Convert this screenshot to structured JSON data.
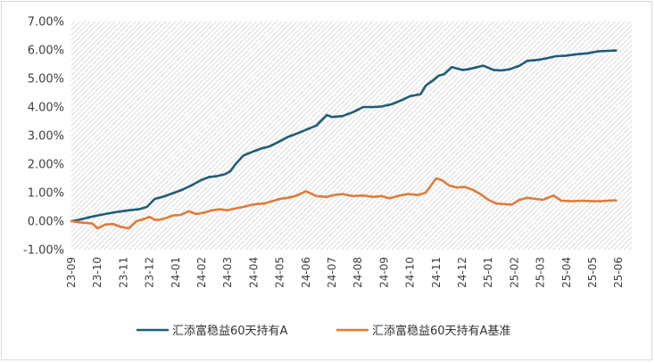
{
  "chart_data": {
    "type": "line",
    "title": "",
    "xlabel": "",
    "ylabel": "",
    "ylim": [
      -1.0,
      7.0
    ],
    "y_ticks": [
      "7.00%",
      "6.00%",
      "5.00%",
      "4.00%",
      "3.00%",
      "2.00%",
      "1.00%",
      "0.00%",
      "-1.00%"
    ],
    "x_ticks": [
      "23-09",
      "23-10",
      "23-11",
      "23-12",
      "24-01",
      "24-02",
      "24-03",
      "24-04",
      "24-05",
      "24-06",
      "24-07",
      "24-08",
      "24-09",
      "24-10",
      "24-11",
      "24-12",
      "25-01",
      "25-02",
      "25-03",
      "25-04",
      "25-05",
      "25-06"
    ],
    "x_range": [
      0,
      20.9
    ],
    "legend_position": "bottom",
    "plot_background": "diagonal hatch",
    "grid": false,
    "series": [
      {
        "name": "汇添富稳益60天持有A",
        "color": "#1f5c78",
        "x": [
          0,
          0.3,
          0.6,
          1.0,
          1.4,
          1.8,
          2.2,
          2.6,
          2.9,
          3.2,
          3.5,
          3.8,
          4.2,
          4.6,
          5.0,
          5.3,
          5.6,
          5.9,
          6.1,
          6.3,
          6.6,
          7.0,
          7.3,
          7.6,
          8.0,
          8.3,
          8.6,
          9.0,
          9.4,
          9.8,
          10.0,
          10.4,
          10.8,
          11.2,
          11.6,
          11.9,
          12.3,
          12.7,
          13.0,
          13.4,
          13.6,
          13.9,
          14.1,
          14.3,
          14.6,
          15.0,
          15.2,
          15.5,
          15.8,
          16.2,
          16.5,
          16.8,
          17.2,
          17.5,
          17.9,
          18.2,
          18.6,
          19.0,
          19.4,
          19.8,
          20.2,
          20.6,
          20.9
        ],
        "values": [
          0.0,
          0.05,
          0.12,
          0.2,
          0.27,
          0.33,
          0.38,
          0.42,
          0.5,
          0.78,
          0.85,
          0.95,
          1.08,
          1.25,
          1.45,
          1.55,
          1.58,
          1.65,
          1.75,
          2.0,
          2.3,
          2.45,
          2.55,
          2.62,
          2.8,
          2.95,
          3.05,
          3.2,
          3.35,
          3.72,
          3.65,
          3.68,
          3.82,
          4.0,
          4.0,
          4.02,
          4.1,
          4.25,
          4.38,
          4.45,
          4.75,
          4.95,
          5.1,
          5.15,
          5.4,
          5.3,
          5.32,
          5.38,
          5.45,
          5.3,
          5.28,
          5.32,
          5.45,
          5.62,
          5.65,
          5.7,
          5.78,
          5.8,
          5.85,
          5.88,
          5.95,
          5.97,
          5.98
        ]
      },
      {
        "name": "汇添富稳益60天持有A基准",
        "color": "#e07b39",
        "x": [
          0,
          0.4,
          0.8,
          1.0,
          1.3,
          1.6,
          1.9,
          2.2,
          2.5,
          2.7,
          3.0,
          3.2,
          3.4,
          3.6,
          3.9,
          4.2,
          4.5,
          4.8,
          5.1,
          5.4,
          5.7,
          6.0,
          6.3,
          6.6,
          6.8,
          7.1,
          7.4,
          7.7,
          8.0,
          8.3,
          8.6,
          9.0,
          9.4,
          9.8,
          10.1,
          10.4,
          10.8,
          11.2,
          11.6,
          11.9,
          12.2,
          12.6,
          12.9,
          13.3,
          13.6,
          14.0,
          14.2,
          14.5,
          14.8,
          15.1,
          15.4,
          15.7,
          16.0,
          16.3,
          16.6,
          16.9,
          17.2,
          17.5,
          17.8,
          18.1,
          18.5,
          18.8,
          19.2,
          19.6,
          20.0,
          20.3,
          20.6,
          20.9
        ],
        "values": [
          0.0,
          -0.05,
          -0.08,
          -0.25,
          -0.12,
          -0.1,
          -0.2,
          -0.25,
          0.0,
          0.05,
          0.15,
          0.05,
          0.05,
          0.1,
          0.2,
          0.22,
          0.35,
          0.25,
          0.3,
          0.38,
          0.42,
          0.38,
          0.45,
          0.5,
          0.55,
          0.6,
          0.62,
          0.7,
          0.78,
          0.82,
          0.88,
          1.05,
          0.88,
          0.85,
          0.92,
          0.95,
          0.88,
          0.9,
          0.85,
          0.88,
          0.8,
          0.9,
          0.95,
          0.92,
          1.0,
          1.5,
          1.45,
          1.25,
          1.18,
          1.2,
          1.1,
          0.95,
          0.75,
          0.62,
          0.6,
          0.58,
          0.75,
          0.82,
          0.78,
          0.75,
          0.9,
          0.72,
          0.7,
          0.72,
          0.7,
          0.7,
          0.72,
          0.73
        ]
      }
    ]
  }
}
